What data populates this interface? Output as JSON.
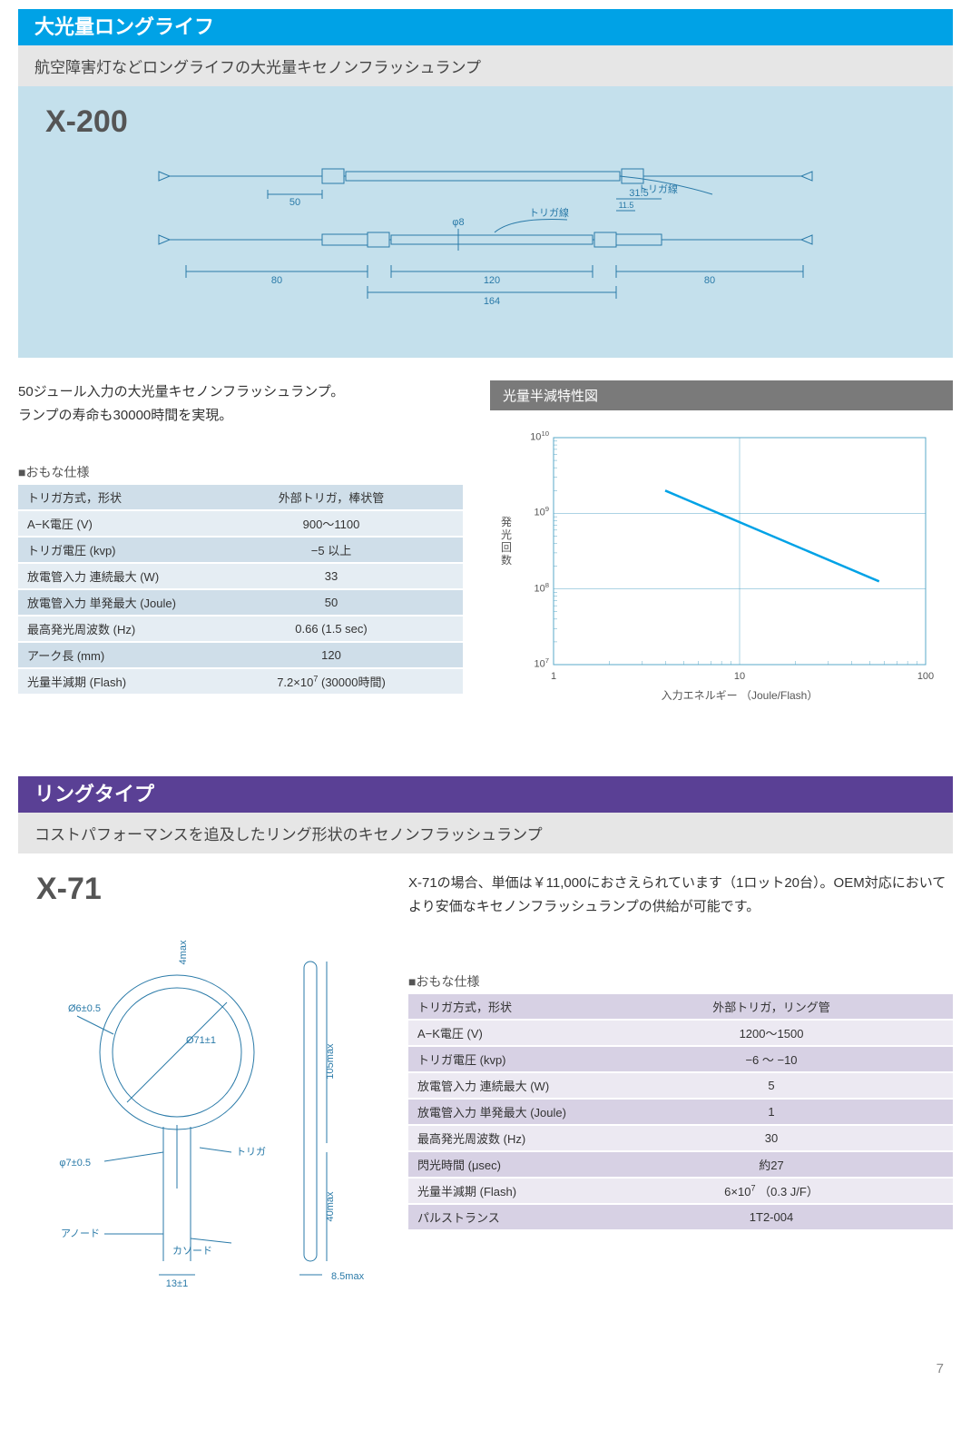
{
  "section1": {
    "banner": "大光量ロングライフ",
    "banner_color": "#00a2e6",
    "subtitle": "航空障害灯などロングライフの大光量キセノンフラッシュランプ",
    "product_code": "X-200",
    "diagram": {
      "bg_color": "#c4e0ec",
      "line_color": "#2a7aa8",
      "text_color": "#2a7aa8",
      "labels": {
        "trigger_top": "トリガ線",
        "trigger_mid": "トリガ線",
        "dim_50": "50",
        "dim_80_l": "80",
        "dim_120": "120",
        "dim_164": "164",
        "dim_80_r": "80",
        "dim_31_5": "31.5",
        "dim_11_5": "11.5",
        "phi8": "φ8"
      }
    },
    "description_lines": [
      "50ジュール入力の大光量キセノンフラッシュランプ。",
      "ランプの寿命も30000時間を実現。"
    ],
    "spec_caption": "■おもな仕様",
    "spec_rows": [
      {
        "label": "トリガ方式，形状",
        "value": "外部トリガ，棒状管"
      },
      {
        "label": "A−K電圧 (V)",
        "value": "900〜1100"
      },
      {
        "label": "トリガ電圧 (kvp)",
        "value": "−5 以上"
      },
      {
        "label": "放電管入力 連続最大 (W)",
        "value": "33"
      },
      {
        "label": "放電管入力 単発最大 (Joule)",
        "value": "50"
      },
      {
        "label": "最高発光周波数 (Hz)",
        "value": "0.66 (1.5 sec)"
      },
      {
        "label": "アーク長 (mm)",
        "value": "120"
      },
      {
        "label": "光量半減期 (Flash)",
        "value_html": "7.2×10<sup>7</sup> (30000時間)"
      }
    ],
    "chart": {
      "title": "光量半減特性図",
      "title_bg": "#7a7a7a",
      "xlabel": "入力エネルギー （Joule/Flash）",
      "ylabel": "発光回数",
      "x_ticks": [
        "1",
        "10",
        "100"
      ],
      "y_ticks_html": [
        "10<sup>7</sup>",
        "10<sup>8</sup>",
        "10<sup>9</sup>",
        "10<sup>10</sup>"
      ],
      "x_log_range": [
        0,
        2
      ],
      "y_log_range": [
        7,
        10
      ],
      "line_color": "#00a2e6",
      "grid_color": "#5aa8c8",
      "data_points": [
        {
          "x_log": 0.6,
          "y_log": 9.3
        },
        {
          "x_log": 1.75,
          "y_log": 8.1
        }
      ]
    }
  },
  "section2": {
    "banner": "リングタイプ",
    "banner_color": "#5a4095",
    "subtitle": "コストパフォーマンスを追及したリング形状のキセノンフラッシュランプ",
    "product_code": "X-71",
    "diagram": {
      "line_color": "#2a7aa8",
      "labels": {
        "phi71": "Ø71±1",
        "phi6": "Ø6±0.5",
        "phi7": "φ7±0.5",
        "trigger": "トリガ",
        "anode": "アノード",
        "cathode": "カソード",
        "h105": "105max",
        "h40": "40max",
        "w13": "13±1",
        "w4": "4max",
        "w85": "8.5max"
      }
    },
    "description": "X-71の場合、単価は￥11,000におさえられています（1ロット20台）。OEM対応においてより安価なキセノンフラッシュランプの供給が可能です。",
    "spec_caption": "■おもな仕様",
    "spec_rows": [
      {
        "label": "トリガ方式，形状",
        "value": "外部トリガ，リング管"
      },
      {
        "label": "A−K電圧 (V)",
        "value": "1200〜1500"
      },
      {
        "label": "トリガ電圧 (kvp)",
        "value": "−6 〜 −10"
      },
      {
        "label": "放電管入力 連続最大 (W)",
        "value": "5"
      },
      {
        "label": "放電管入力 単発最大 (Joule)",
        "value": "1"
      },
      {
        "label": "最高発光周波数 (Hz)",
        "value": "30"
      },
      {
        "label": "閃光時間 (μsec)",
        "value": "約27"
      },
      {
        "label": "光量半減期 (Flash)",
        "value_html": "6×10<sup>7</sup> （0.3 J/F）"
      },
      {
        "label": "パルストランス",
        "value": "1T2-004"
      }
    ]
  },
  "page_number": "7"
}
